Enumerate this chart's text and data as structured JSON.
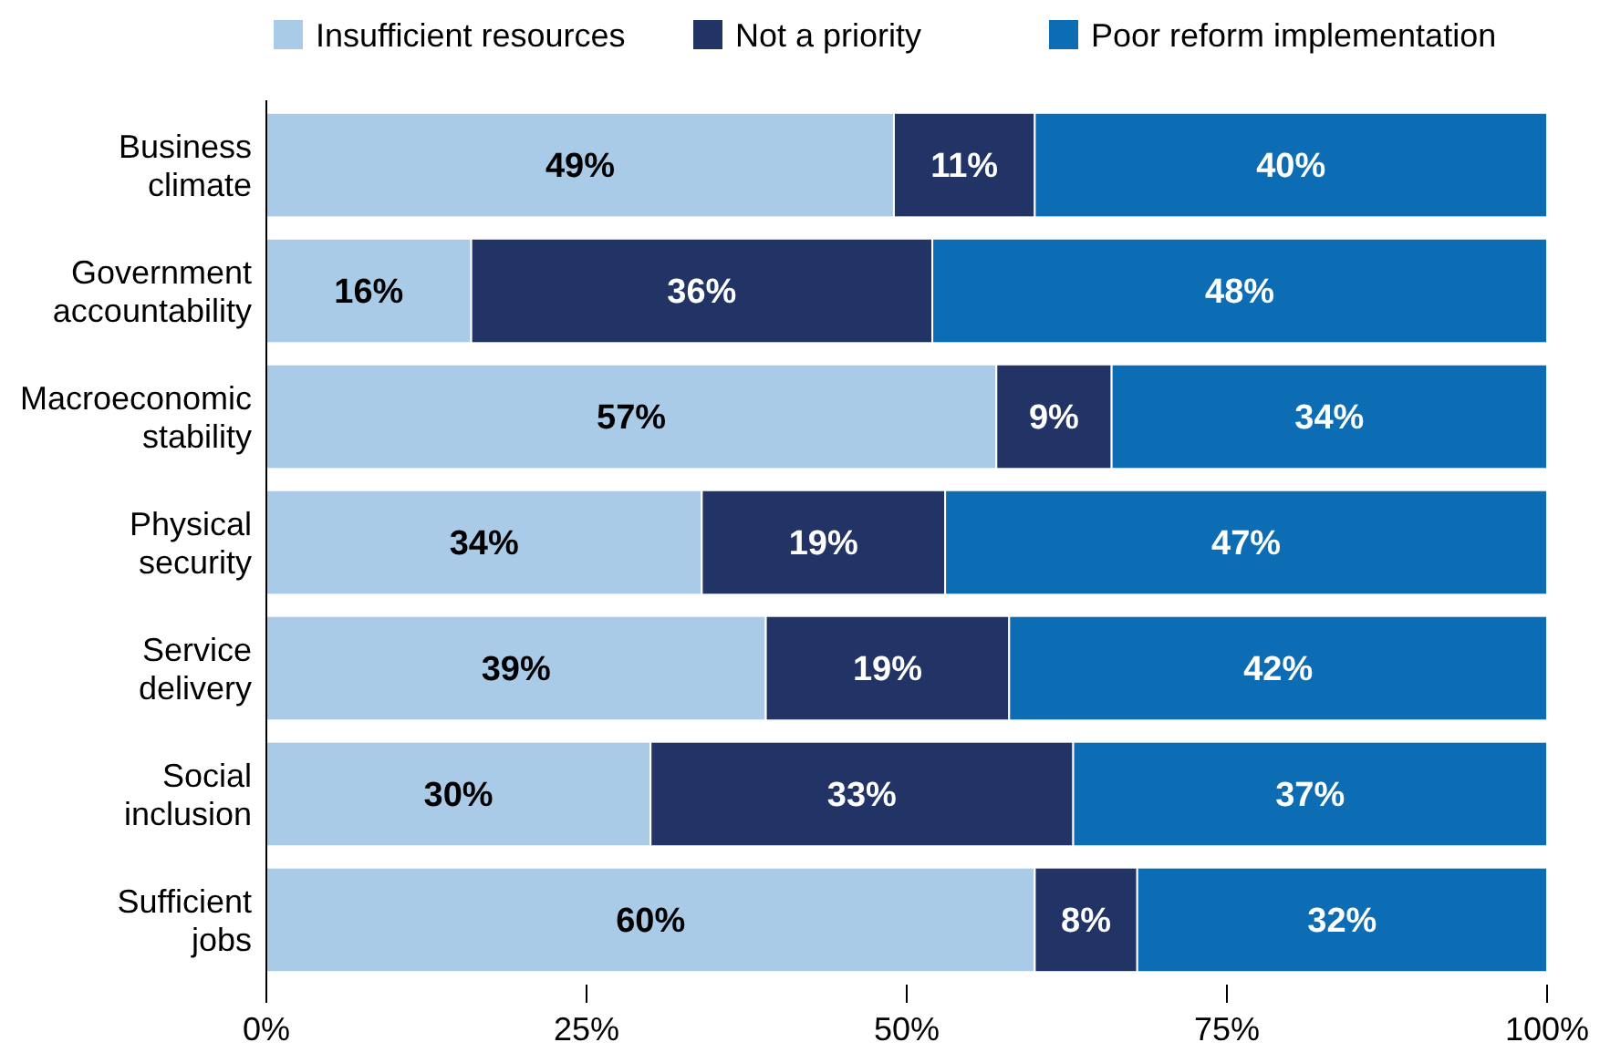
{
  "chart_data": {
    "type": "bar",
    "orientation": "horizontal",
    "stacked": true,
    "legend": "top",
    "categories": [
      "Business climate",
      "Government accountability",
      "Macroeconomic stability",
      "Physical security",
      "Service delivery",
      "Social inclusion",
      "Sufficient jobs"
    ],
    "series": [
      {
        "name": "Insufficient resources",
        "color": "#a9cbe7",
        "values": [
          49,
          16,
          57,
          34,
          39,
          30,
          60
        ],
        "value_labels": [
          "49%",
          "16%",
          "57%",
          "34%",
          "39%",
          "30%",
          "60%"
        ]
      },
      {
        "name": "Not a priority",
        "color": "#223466",
        "values": [
          11,
          36,
          9,
          19,
          19,
          33,
          8
        ],
        "value_labels": [
          "11%",
          "36%",
          "9%",
          "19%",
          "19%",
          "33%",
          "8%"
        ]
      },
      {
        "name": "Poor reform implementation",
        "color": "#0c6cb4",
        "values": [
          40,
          48,
          34,
          47,
          42,
          37,
          32
        ],
        "value_labels": [
          "40%",
          "48%",
          "34%",
          "47%",
          "42%",
          "37%",
          "32%"
        ]
      }
    ],
    "xlim": [
      0,
      100
    ],
    "xticks": [
      {
        "value": 0,
        "label": "0%"
      },
      {
        "value": 25,
        "label": "25%"
      },
      {
        "value": 50,
        "label": "50%"
      },
      {
        "value": 75,
        "label": "75%"
      },
      {
        "value": 100,
        "label": "100%"
      }
    ],
    "grid": false
  }
}
